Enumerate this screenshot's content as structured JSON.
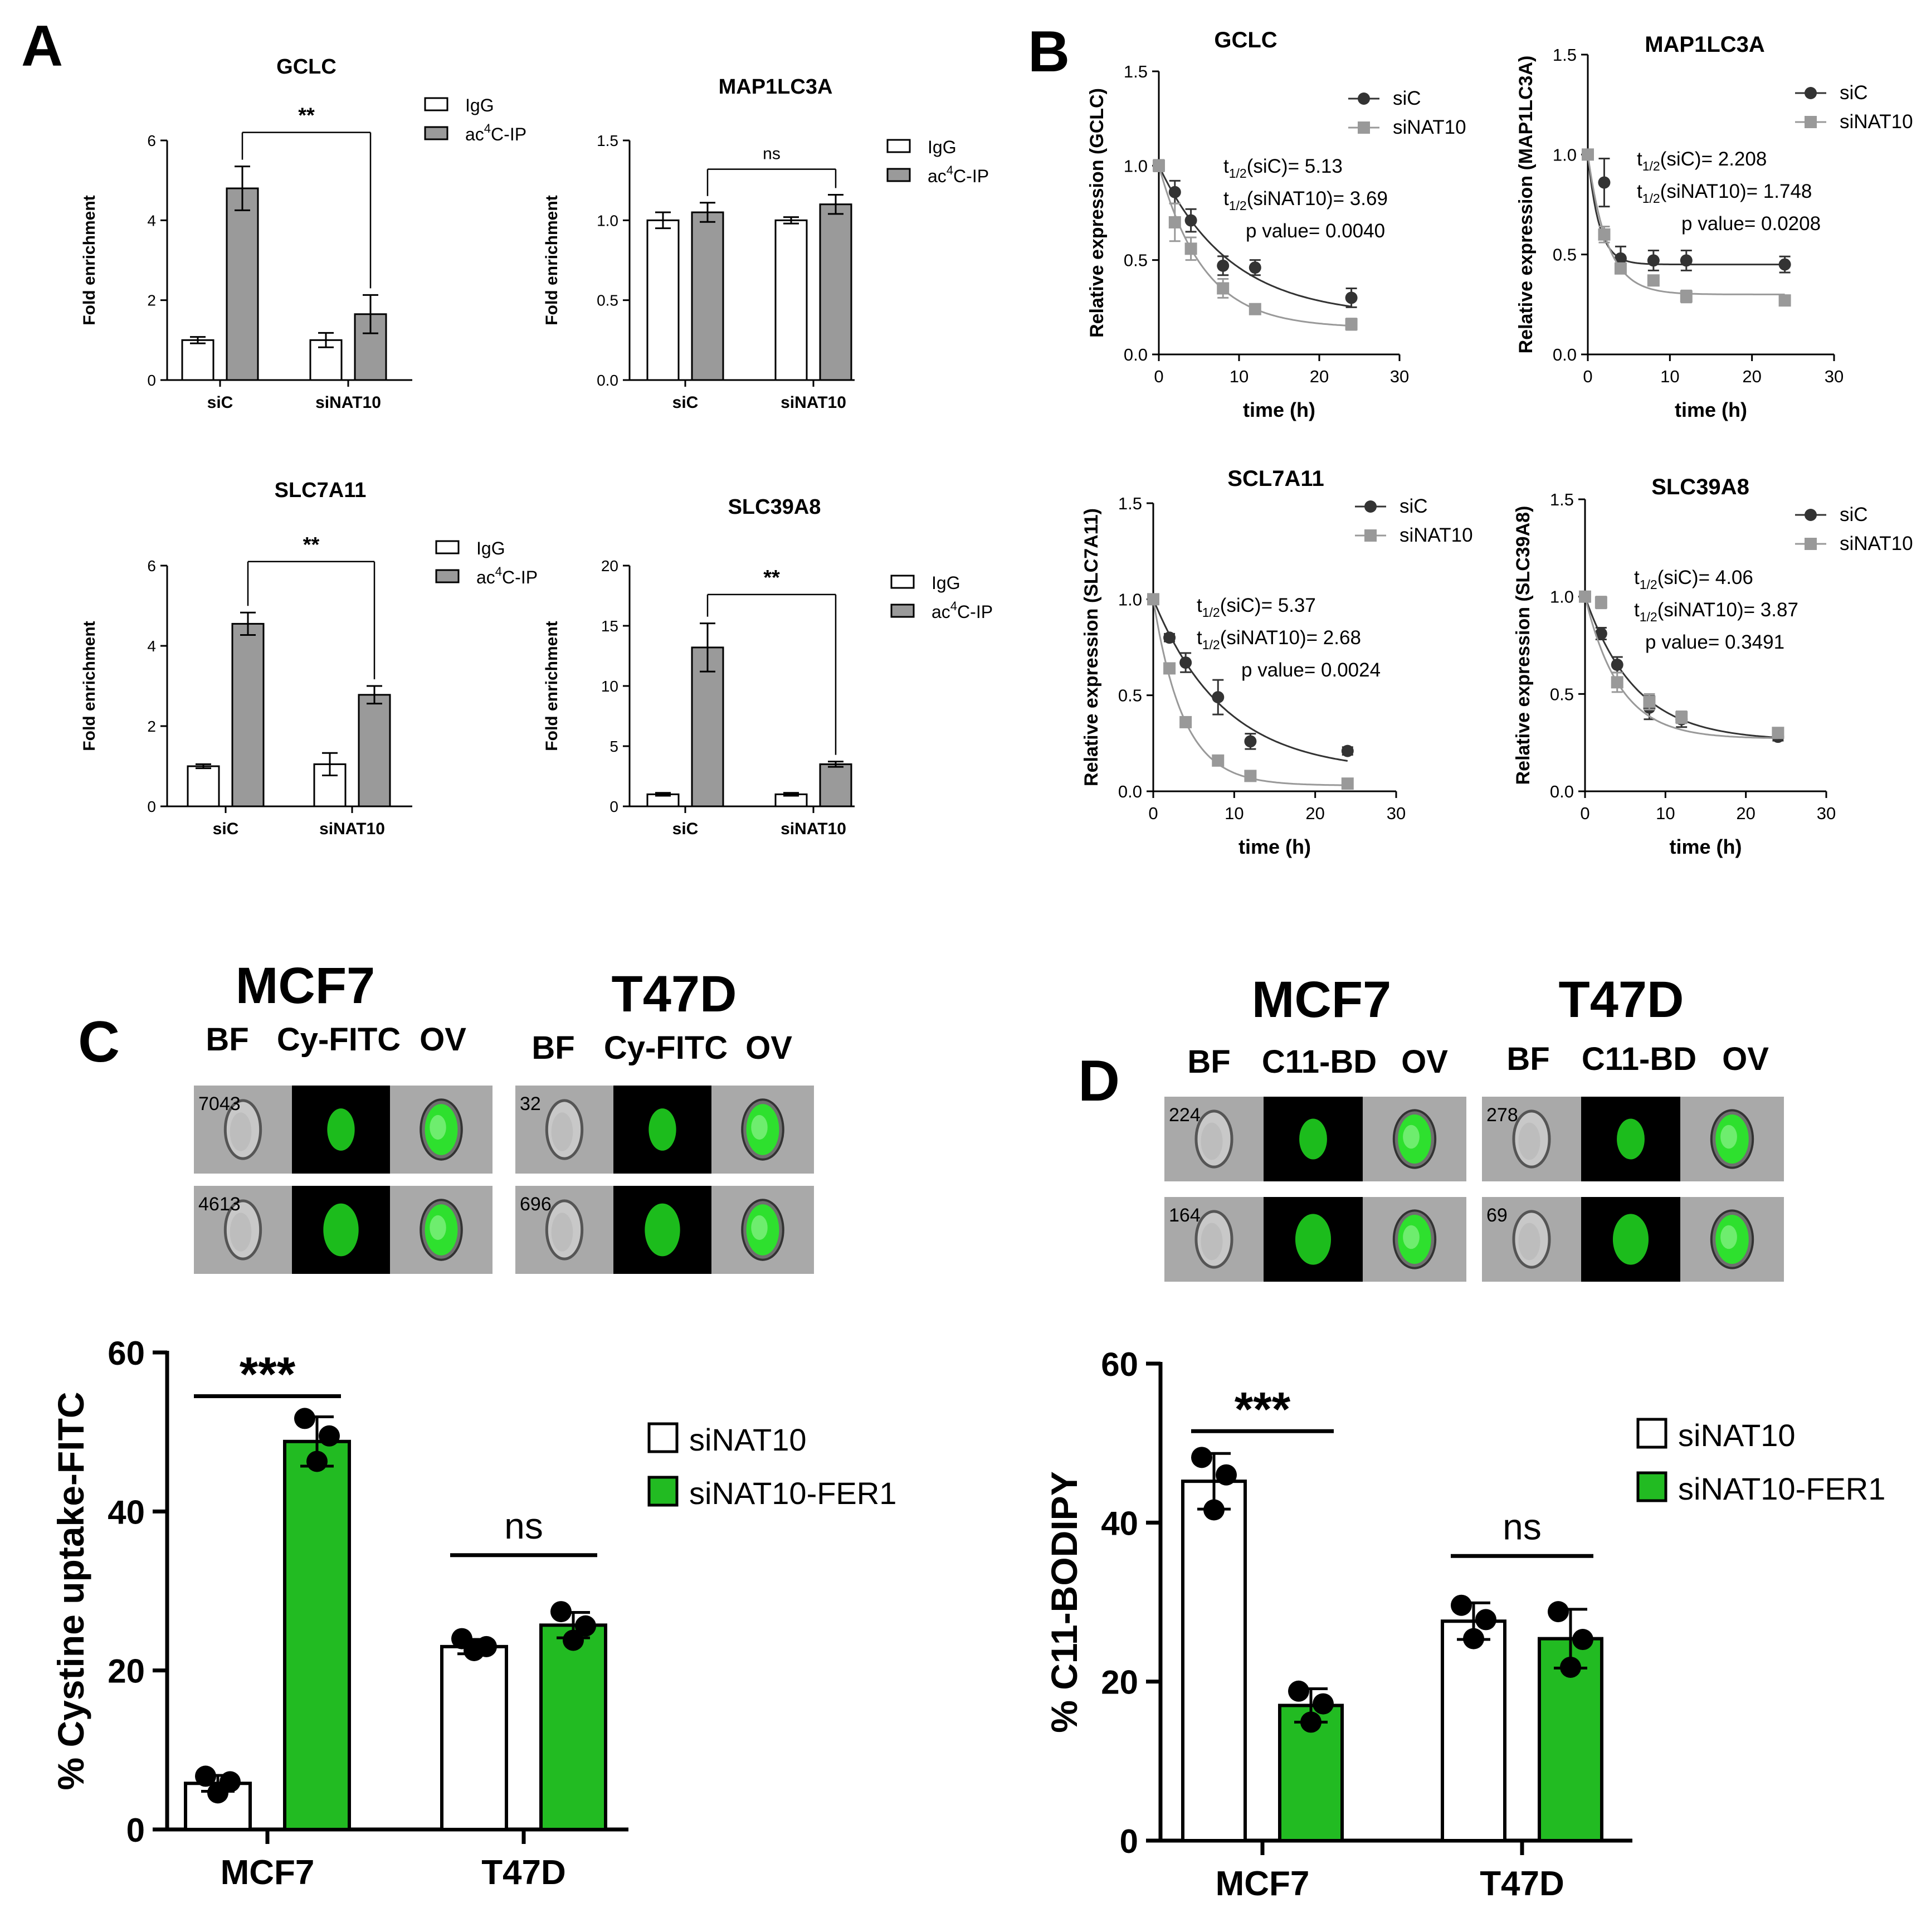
{
  "colors": {
    "bar_igg": "#ffffff",
    "bar_ip": "#9a9a9a",
    "line_sic": "#333333",
    "line_sinat": "#999999",
    "bar_green": "#22bb22",
    "cell_green": "#1fd01f",
    "strip_bg": "#a9a9a9"
  },
  "panels": {
    "A": "A",
    "B": "B",
    "C": "C",
    "D": "D"
  },
  "chart_data": [
    {
      "id": "A1",
      "type": "bar",
      "title": "GCLC",
      "ylabel": "Fold enrichment",
      "categories": [
        "siC",
        "siNAT10"
      ],
      "ylim": [
        0,
        6
      ],
      "yticks": [
        "0",
        "2",
        "4",
        "6"
      ],
      "tick_values": [
        0,
        2,
        4,
        6
      ],
      "series": [
        {
          "name": "IgG",
          "values": [
            1.0,
            1.0
          ],
          "err": [
            0.08,
            0.18
          ]
        },
        {
          "name": "ac4C-IP",
          "values": [
            4.8,
            1.65
          ],
          "err": [
            0.55,
            0.48
          ]
        }
      ],
      "legend": [
        "IgG",
        "ac4C-IP"
      ],
      "legend_sup": "4",
      "sig": "**",
      "sig_y": 6.2
    },
    {
      "id": "A2",
      "type": "bar",
      "title": "MAP1LC3A",
      "ylabel": "Fold enrichment",
      "categories": [
        "siC",
        "siNAT10"
      ],
      "ylim": [
        0,
        1.5
      ],
      "yticks": [
        "0.0",
        "0.5",
        "1.0",
        "1.5"
      ],
      "tick_values": [
        0,
        0.5,
        1.0,
        1.5
      ],
      "series": [
        {
          "name": "IgG",
          "values": [
            1.0,
            1.0
          ],
          "err": [
            0.05,
            0.02
          ]
        },
        {
          "name": "ac4C-IP",
          "values": [
            1.05,
            1.1
          ],
          "err": [
            0.06,
            0.06
          ]
        }
      ],
      "legend": [
        "IgG",
        "ac4C-IP"
      ],
      "legend_sup": "4",
      "sig": "ns",
      "sig_y": 1.32
    },
    {
      "id": "A3",
      "type": "bar",
      "title": "SLC7A11",
      "ylabel": "Fold enrichment",
      "categories": [
        "siC",
        "siNAT10"
      ],
      "ylim": [
        0,
        6
      ],
      "yticks": [
        "0",
        "2",
        "4",
        "6"
      ],
      "tick_values": [
        0,
        2,
        4,
        6
      ],
      "series": [
        {
          "name": "IgG",
          "values": [
            1.0,
            1.05
          ],
          "err": [
            0.05,
            0.28
          ]
        },
        {
          "name": "ac4C-IP",
          "values": [
            4.55,
            2.78
          ],
          "err": [
            0.28,
            0.22
          ]
        }
      ],
      "legend": [
        "IgG",
        "ac4C-IP"
      ],
      "legend_sup": "4",
      "sig": "**",
      "sig_y": 6.1
    },
    {
      "id": "A4",
      "type": "bar",
      "title": "SLC39A8",
      "ylabel": "Fold enrichment",
      "categories": [
        "siC",
        "siNAT10"
      ],
      "ylim": [
        0,
        20
      ],
      "yticks": [
        "0",
        "5",
        "10",
        "15",
        "20"
      ],
      "tick_values": [
        0,
        5,
        10,
        15,
        20
      ],
      "series": [
        {
          "name": "IgG",
          "values": [
            1.0,
            1.0
          ],
          "err": [
            0.12,
            0.12
          ]
        },
        {
          "name": "ac4C-IP",
          "values": [
            13.2,
            3.5
          ],
          "err": [
            2.0,
            0.22
          ]
        }
      ],
      "legend": [
        "IgG",
        "ac4C-IP"
      ],
      "legend_sup": "4",
      "sig": "**",
      "sig_y": 17.6
    },
    {
      "id": "B1",
      "type": "line",
      "title": "GCLC",
      "xlabel": "time (h)",
      "ylabel": "Relative expression (GCLC)",
      "xlim": [
        0,
        30
      ],
      "xticks": [
        "0",
        "10",
        "20",
        "30"
      ],
      "xtick_values": [
        0,
        10,
        20,
        30
      ],
      "ylim": [
        0,
        1.5
      ],
      "yticks": [
        "0.0",
        "0.5",
        "1.0",
        "1.5"
      ],
      "ytick_values": [
        0,
        0.5,
        1.0,
        1.5
      ],
      "x": [
        0,
        2,
        4,
        8,
        12,
        24
      ],
      "series": [
        {
          "name": "siC",
          "values": [
            1.0,
            0.86,
            0.71,
            0.47,
            0.46,
            0.3
          ],
          "err": [
            0.03,
            0.06,
            0.06,
            0.05,
            0.04,
            0.05
          ],
          "plateau": 0.2
        },
        {
          "name": "siNAT10",
          "values": [
            1.0,
            0.7,
            0.56,
            0.35,
            0.24,
            0.16
          ],
          "err": [
            0.03,
            0.1,
            0.06,
            0.05,
            0.02,
            0.03
          ],
          "plateau": 0.14
        }
      ],
      "annotations": [
        {
          "pre": "t",
          "sub": "1/2",
          "post": "(siC)= 5.13"
        },
        {
          "pre": "t",
          "sub": "1/2",
          "post": "(siNAT10)= 3.69"
        },
        {
          "pre": "",
          "sub": "",
          "post": "p value= 0.0040"
        }
      ]
    },
    {
      "id": "B2",
      "type": "line",
      "title": "MAP1LC3A",
      "xlabel": "time (h)",
      "ylabel": "Relative expression (MAP1LC3A)",
      "xlim": [
        0,
        30
      ],
      "xticks": [
        "0",
        "10",
        "20",
        "30"
      ],
      "xtick_values": [
        0,
        10,
        20,
        30
      ],
      "ylim": [
        0,
        1.5
      ],
      "yticks": [
        "0.0",
        "0.5",
        "1.0",
        "1.5"
      ],
      "ytick_values": [
        0,
        0.5,
        1.0,
        1.5
      ],
      "x": [
        0,
        2,
        4,
        8,
        12,
        24
      ],
      "series": [
        {
          "name": "siC",
          "values": [
            1.0,
            0.86,
            0.48,
            0.47,
            0.47,
            0.45
          ],
          "err": [
            0.02,
            0.12,
            0.06,
            0.05,
            0.05,
            0.04
          ],
          "plateau": 0.45
        },
        {
          "name": "siNAT10",
          "values": [
            1.0,
            0.6,
            0.43,
            0.37,
            0.29,
            0.27
          ],
          "err": [
            0.02,
            0.04,
            0.02,
            0.02,
            0.03,
            0.02
          ],
          "plateau": 0.3
        }
      ],
      "annotations": [
        {
          "pre": "t",
          "sub": "1/2",
          "post": "(siC)= 2.208"
        },
        {
          "pre": "t",
          "sub": "1/2",
          "post": "(siNAT10)= 1.748"
        },
        {
          "pre": "",
          "sub": "",
          "post": "p value= 0.0208"
        }
      ]
    },
    {
      "id": "B3",
      "type": "line",
      "title": "SCL7A11",
      "xlabel": "time (h)",
      "ylabel": "Relative expression (SLC7A11)",
      "xlim": [
        0,
        30
      ],
      "xticks": [
        "0",
        "10",
        "20",
        "30"
      ],
      "xtick_values": [
        0,
        10,
        20,
        30
      ],
      "ylim": [
        0,
        1.5
      ],
      "yticks": [
        "0.0",
        "0.5",
        "1.0",
        "1.5"
      ],
      "ytick_values": [
        0,
        0.5,
        1.0,
        1.5
      ],
      "x": [
        0,
        2,
        4,
        8,
        12,
        24
      ],
      "series": [
        {
          "name": "siC",
          "values": [
            1.0,
            0.8,
            0.67,
            0.49,
            0.26,
            0.21
          ],
          "err": [
            0.02,
            0.02,
            0.05,
            0.09,
            0.04,
            0.02
          ],
          "plateau": 0.1
        },
        {
          "name": "siNAT10",
          "values": [
            1.0,
            0.64,
            0.36,
            0.16,
            0.08,
            0.04
          ],
          "err": [
            0.02,
            0.02,
            0.02,
            0.02,
            0.02,
            0.01
          ],
          "plateau": 0.03
        }
      ],
      "annotations": [
        {
          "pre": "t",
          "sub": "1/2",
          "post": "(siC)= 5.37"
        },
        {
          "pre": "t",
          "sub": "1/2",
          "post": "(siNAT10)= 2.68"
        },
        {
          "pre": "",
          "sub": "",
          "post": "p value= 0.0024"
        }
      ]
    },
    {
      "id": "B4",
      "type": "line",
      "title": "SLC39A8",
      "xlabel": "time (h)",
      "ylabel": "Relative expression (SLC39A8)",
      "xlim": [
        0,
        30
      ],
      "xticks": [
        "0",
        "10",
        "20",
        "30"
      ],
      "xtick_values": [
        0,
        10,
        20,
        30
      ],
      "ylim": [
        0,
        1.5
      ],
      "yticks": [
        "0.0",
        "0.5",
        "1.0",
        "1.5"
      ],
      "ytick_values": [
        0,
        0.5,
        1.0,
        1.5
      ],
      "x": [
        0,
        2,
        4,
        8,
        12,
        24
      ],
      "series": [
        {
          "name": "siC",
          "values": [
            1.0,
            0.81,
            0.65,
            0.43,
            0.37,
            0.28
          ],
          "err": [
            0.02,
            0.03,
            0.04,
            0.06,
            0.04,
            0.02
          ],
          "plateau": 0.26
        },
        {
          "name": "siNAT10",
          "values": [
            1.0,
            0.97,
            0.56,
            0.46,
            0.38,
            0.3
          ],
          "err": [
            0.02,
            0.03,
            0.05,
            0.04,
            0.03,
            0.02
          ],
          "plateau": 0.27
        }
      ],
      "annotations": [
        {
          "pre": "t",
          "sub": "1/2",
          "post": "(siC)= 4.06"
        },
        {
          "pre": "t",
          "sub": "1/2",
          "post": "(siNAT10)= 3.87"
        },
        {
          "pre": "",
          "sub": "",
          "post": "p value= 0.3491"
        }
      ]
    },
    {
      "id": "C",
      "type": "bar",
      "ylabel": "% Cystine uptake-FITC",
      "categories": [
        "MCF7",
        "T47D"
      ],
      "ylim": [
        0,
        60
      ],
      "yticks": [
        "0",
        "20",
        "40",
        "60"
      ],
      "tick_values": [
        0,
        20,
        40,
        60
      ],
      "series": [
        {
          "name": "siNAT10",
          "values": [
            5.8,
            23.0
          ],
          "err": [
            1.0,
            0.9
          ],
          "points": [
            [
              6.7,
              6.0,
              4.6
            ],
            [
              24.0,
              23.0,
              22.5
            ]
          ]
        },
        {
          "name": "siNAT10-FER1",
          "values": [
            48.8,
            25.7
          ],
          "err": [
            3.1,
            1.6
          ],
          "points": [
            [
              51.7,
              49.5,
              46.3
            ],
            [
              27.4,
              25.6,
              23.8
            ]
          ]
        }
      ],
      "sig": [
        "***",
        "ns"
      ],
      "sig_y": [
        54.5,
        34.5
      ]
    },
    {
      "id": "D",
      "type": "bar",
      "ylabel": "% C11-BODIPY",
      "categories": [
        "MCF7",
        "T47D"
      ],
      "ylim": [
        0,
        60
      ],
      "yticks": [
        "0",
        "20",
        "40",
        "60"
      ],
      "tick_values": [
        0,
        20,
        40,
        60
      ],
      "series": [
        {
          "name": "siNAT10",
          "values": [
            45.2,
            27.6
          ],
          "err": [
            3.5,
            2.3
          ],
          "points": [
            [
              48.2,
              46.0,
              41.6
            ],
            [
              29.6,
              27.8,
              25.4
            ]
          ]
        },
        {
          "name": "siNAT10-FER1",
          "values": [
            17.0,
            25.4
          ],
          "err": [
            2.1,
            3.7
          ],
          "points": [
            [
              18.8,
              17.2,
              14.9
            ],
            [
              28.8,
              25.3,
              21.8
            ]
          ]
        }
      ],
      "sig": [
        "***",
        "ns"
      ],
      "sig_y": [
        51.5,
        35.8
      ]
    }
  ],
  "imaging": {
    "C": {
      "lines": [
        "MCF7",
        "T47D"
      ],
      "channels": [
        [
          "BF",
          "Cy-FITC",
          "OV"
        ],
        [
          "BF",
          "Cy-FITC",
          "OV"
        ]
      ],
      "ids": [
        [
          "7043",
          "4613"
        ],
        [
          "32",
          "696"
        ]
      ]
    },
    "D": {
      "lines": [
        "MCF7",
        "T47D"
      ],
      "channels": [
        [
          "BF",
          "C11-BD",
          "OV"
        ],
        [
          "BF",
          "C11-BD",
          "OV"
        ]
      ],
      "ids": [
        [
          "224",
          "164"
        ],
        [
          "278",
          "69"
        ]
      ]
    }
  }
}
